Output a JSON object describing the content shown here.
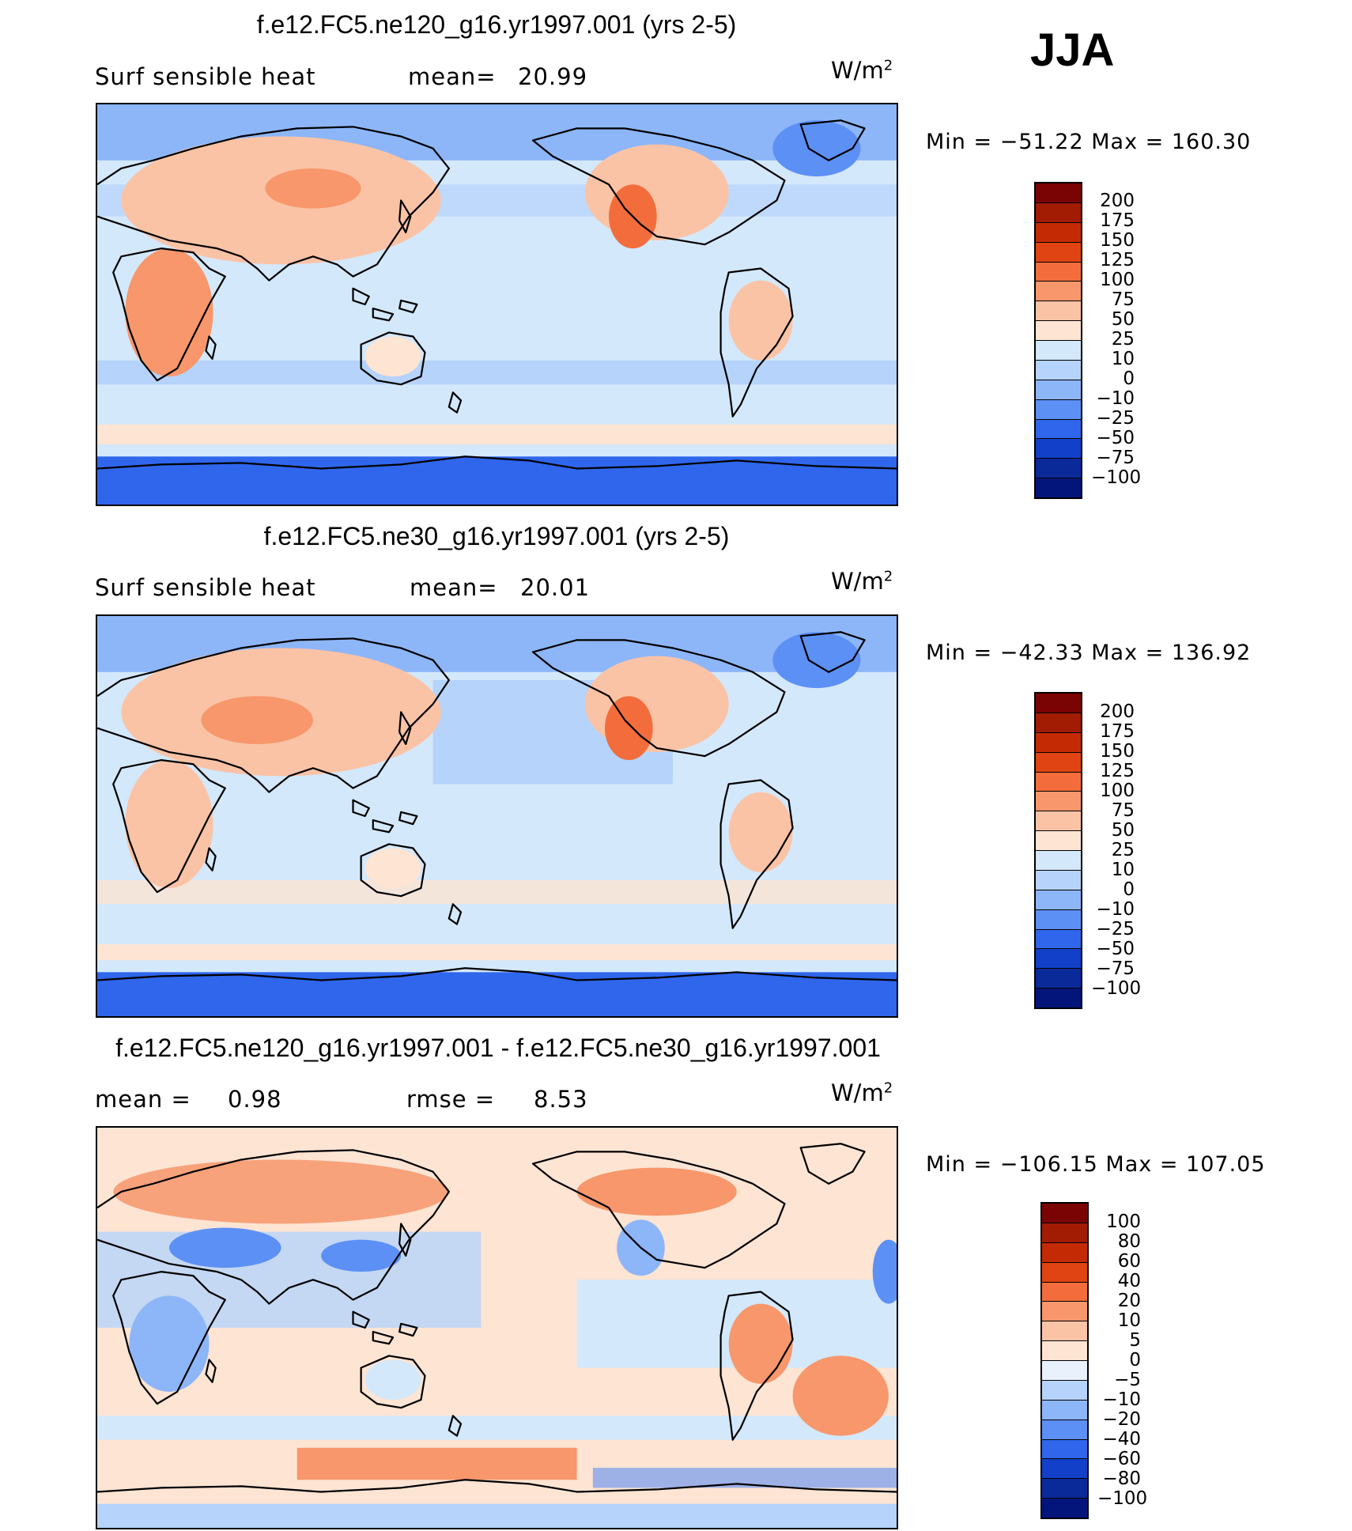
{
  "season": "JJA",
  "colors": {
    "ocean_base": "#d3e8fb",
    "land_warm": "#fde4d3",
    "coast": "#000000"
  },
  "icons": [
    "map-outline"
  ],
  "panels": [
    {
      "title": "f.e12.FC5.ne120_g16.yr1997.001 (yrs 2-5)",
      "left_label": "Surf sensible heat",
      "stat_label": "mean=",
      "stat_value": "20.99",
      "units": "W/m",
      "units_exp": "2",
      "min_label": "Min  =",
      "min_value": "−51.22",
      "max_label": "Max  =",
      "max_value": "160.30",
      "colorbar_labels": [
        "200",
        "175",
        "150",
        "125",
        "100",
        "75",
        "50",
        "25",
        "10",
        "0",
        "−10",
        "−25",
        "−50",
        "−75",
        "−100"
      ],
      "colorbar_colors": [
        "#7a0403",
        "#a21b03",
        "#c42b04",
        "#e04412",
        "#f26d3b",
        "#f7976b",
        "#fbc3a6",
        "#fde4d3",
        "#d3e8fb",
        "#b5d3fb",
        "#8db6f9",
        "#5d90f5",
        "#2f66ec",
        "#1240c8",
        "#0a2a9a",
        "#03157a"
      ]
    },
    {
      "title": "f.e12.FC5.ne30_g16.yr1997.001 (yrs 2-5)",
      "left_label": "Surf sensible heat",
      "stat_label": "mean=",
      "stat_value": "20.01",
      "units": "W/m",
      "units_exp": "2",
      "min_label": "Min  =",
      "min_value": "−42.33",
      "max_label": "Max  =",
      "max_value": "136.92",
      "colorbar_labels": [
        "200",
        "175",
        "150",
        "125",
        "100",
        "75",
        "50",
        "25",
        "10",
        "0",
        "−10",
        "−25",
        "−50",
        "−75",
        "−100"
      ],
      "colorbar_colors": [
        "#7a0403",
        "#a21b03",
        "#c42b04",
        "#e04412",
        "#f26d3b",
        "#f7976b",
        "#fbc3a6",
        "#fde4d3",
        "#d3e8fb",
        "#b5d3fb",
        "#8db6f9",
        "#5d90f5",
        "#2f66ec",
        "#1240c8",
        "#0a2a9a",
        "#03157a"
      ]
    },
    {
      "title": "f.e12.FC5.ne120_g16.yr1997.001 - f.e12.FC5.ne30_g16.yr1997.001",
      "left_label": "mean  =",
      "left_value": "0.98",
      "stat_label": "rmse  =",
      "stat_value": "8.53",
      "units": "W/m",
      "units_exp": "2",
      "min_label": "Min  =",
      "min_value": "−106.15",
      "max_label": "Max  =",
      "max_value": "107.05",
      "colorbar_labels": [
        "100",
        "80",
        "60",
        "40",
        "20",
        "10",
        "5",
        "0",
        "−5",
        "−10",
        "−20",
        "−40",
        "−60",
        "−80",
        "−100"
      ],
      "colorbar_colors": [
        "#7a0403",
        "#a21b03",
        "#c42b04",
        "#e04412",
        "#f26d3b",
        "#f7976b",
        "#fbc3a6",
        "#fde4d3",
        "#e8f1fc",
        "#b5d3fb",
        "#8db6f9",
        "#5d90f5",
        "#2f66ec",
        "#1240c8",
        "#0a2a9a",
        "#03157a"
      ]
    }
  ]
}
